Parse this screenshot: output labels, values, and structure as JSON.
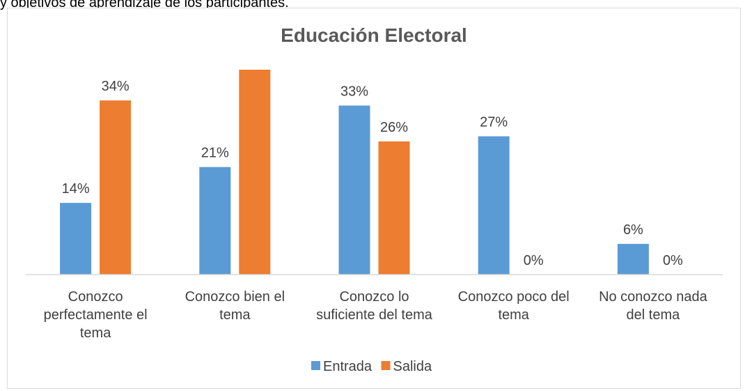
{
  "header_fragment": "y objetivos de aprendizaje de los participantes.",
  "chart_data": {
    "type": "bar",
    "title": "Educación Electoral",
    "xlabel": "",
    "ylabel": "",
    "categories": [
      [
        "Conozco",
        "perfectamente el",
        "tema"
      ],
      [
        "Conozco bien el",
        "tema"
      ],
      [
        "Conozco lo",
        "suficiente del tema"
      ],
      [
        "Conozco poco del",
        "tema"
      ],
      [
        "No conozco nada",
        "del tema"
      ]
    ],
    "series": [
      {
        "name": "Entrada",
        "color": "#5b9bd5",
        "values": [
          14,
          21,
          33,
          27,
          6
        ],
        "labels": [
          "14%",
          "21%",
          "33%",
          "27%",
          "6%"
        ]
      },
      {
        "name": "Salida",
        "color": "#ed7d31",
        "values": [
          34,
          40,
          26,
          0,
          0
        ],
        "labels": [
          "34%",
          "",
          "26%",
          "0%",
          "0%"
        ]
      }
    ],
    "ylim": [
      0,
      40
    ],
    "grid": false,
    "legend_position": "bottom"
  }
}
